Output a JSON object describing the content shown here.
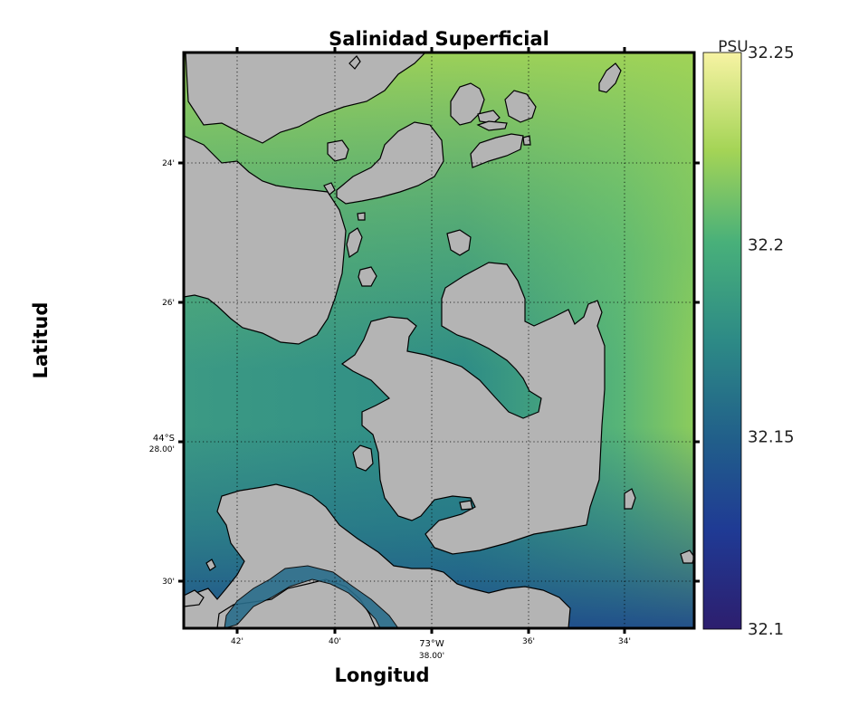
{
  "chart_data": {
    "type": "heatmap",
    "title": "Salinidad Superficial",
    "xlabel": "Longitud",
    "ylabel": "Latitud",
    "colorbar": {
      "unit": "PSU",
      "range": [
        32.1,
        32.25
      ],
      "ticks": [
        "32.1",
        "32.15",
        "32.2",
        "32.25"
      ],
      "colormap": "viridis-like",
      "colors": [
        "#2d1e6e",
        "#1f3a94",
        "#215f8a",
        "#2d8a86",
        "#48b07a",
        "#a4d456",
        "#f7f3a3"
      ]
    },
    "x_ticks": [
      {
        "label": "42'",
        "minute": 42
      },
      {
        "label": "40'",
        "minute": 40
      },
      {
        "label": "73°W",
        "minute": 38
      },
      {
        "label": "38.00'",
        "minute": 38
      },
      {
        "label": "36'",
        "minute": 36
      },
      {
        "label": "34'",
        "minute": 34
      }
    ],
    "y_ticks": [
      {
        "label": "24'",
        "minute": 24
      },
      {
        "label": "26'",
        "minute": 26
      },
      {
        "label": "44°S",
        "minute": 28
      },
      {
        "label": "28.00'",
        "minute": 28
      },
      {
        "label": "30'",
        "minute": 30
      }
    ],
    "grid": true,
    "land_color": "#b4b4b4",
    "description_values": {
      "north_edge": 32.21,
      "east_edge": 32.22,
      "central_channels": 32.17,
      "southeast_corner": 32.13,
      "southwest_channel": 32.14
    }
  }
}
